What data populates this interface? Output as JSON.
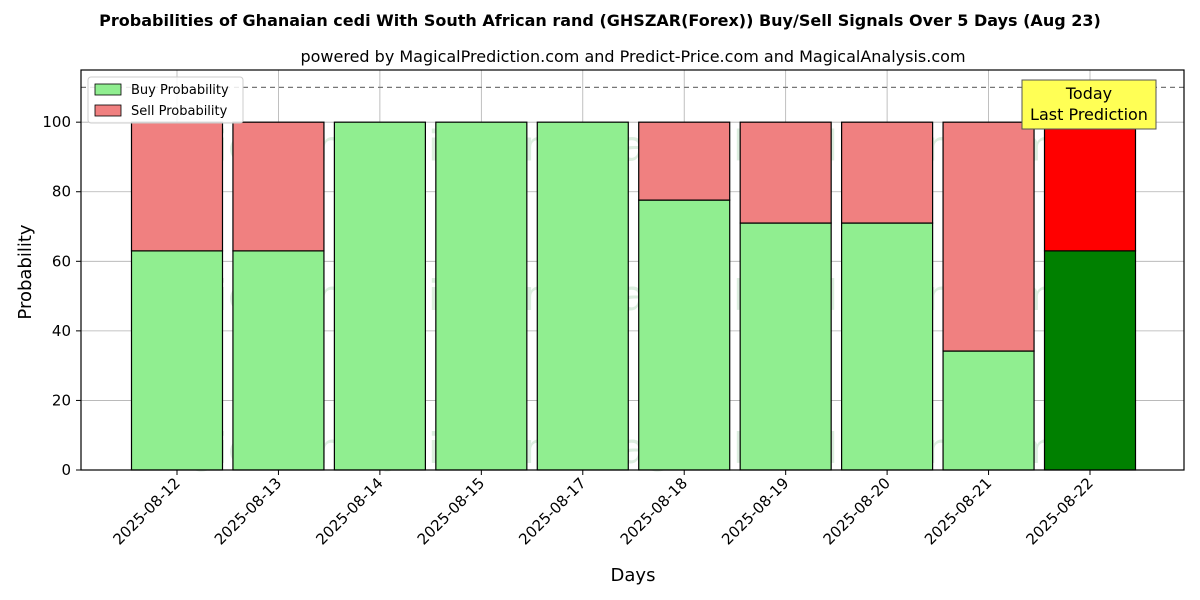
{
  "chart_data": {
    "type": "bar",
    "stacked": true,
    "title": "Probabilities of Ghanaian cedi With South African rand (GHSZAR(Forex)) Buy/Sell Signals Over 5 Days (Aug 23)",
    "subtitle": "powered by MagicalPrediction.com and Predict-Price.com and MagicalAnalysis.com",
    "xlabel": "Days",
    "ylabel": "Probability",
    "ylim": [
      0,
      115
    ],
    "yticks": [
      0,
      20,
      40,
      60,
      80,
      100
    ],
    "grid": true,
    "reference_line": 110,
    "legend_position": "top-left",
    "categories": [
      "2025-08-12",
      "2025-08-13",
      "2025-08-14",
      "2025-08-15",
      "2025-08-17",
      "2025-08-18",
      "2025-08-19",
      "2025-08-20",
      "2025-08-21",
      "2025-08-22"
    ],
    "series": [
      {
        "name": "Buy Probability",
        "values": [
          63,
          63,
          100,
          100,
          100,
          77.6,
          71,
          71,
          34.2,
          63
        ],
        "color": "#90ee90",
        "highlight_color": "#008000"
      },
      {
        "name": "Sell Probability",
        "values": [
          37,
          37,
          0,
          0,
          0,
          22.4,
          29,
          29,
          65.8,
          37
        ],
        "color": "#f08080",
        "highlight_color": "#ff0000"
      }
    ],
    "highlight_index": 9,
    "annotation": {
      "lines": [
        "Today",
        "Last Prediction"
      ],
      "background": "#ffff55"
    },
    "watermarks": [
      "MagicalAnalysis.com",
      "MagicalPrediction.com"
    ]
  }
}
